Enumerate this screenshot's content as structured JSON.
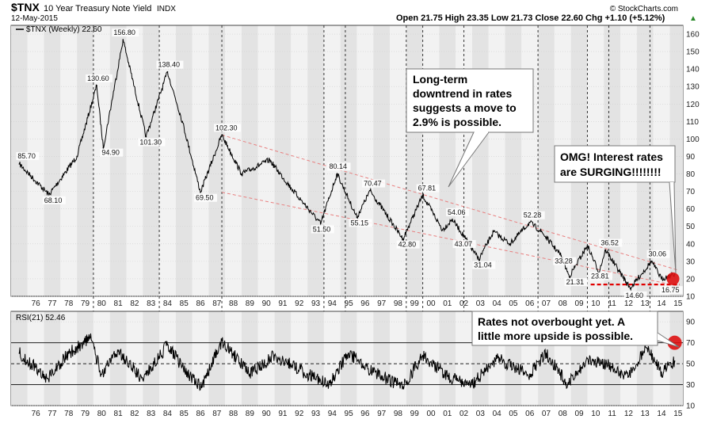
{
  "header": {
    "symbol": "$TNX",
    "name": "10 Year Treasury Note Yield",
    "exchange": "INDX",
    "date": "12-May-2015",
    "brand": "© StockCharts.com",
    "ohlc": "Open 21.75  High 23.35  Low 21.73  Close 22.60  Chg +1.10 (+5.12%)",
    "up_arrow": "▲"
  },
  "chart_data": [
    {
      "type": "line",
      "title": "$TNX 10 Year Treasury Note Yield",
      "legend": "$TNX (Weekly) 22.60",
      "x": [
        1975.5,
        1977.3,
        1979.0,
        1980.2,
        1980.6,
        1981.8,
        1983.2,
        1984.5,
        1985.4,
        1986.5,
        1987.8,
        1989.0,
        1990.7,
        1992.0,
        1993.8,
        1994.8,
        1996.0,
        1996.8,
        1998.8,
        2000.0,
        2001.2,
        2001.8,
        2002.6,
        2003.4,
        2004.3,
        2005.3,
        2006.5,
        2007.2,
        2008.4,
        2008.9,
        2010.0,
        2010.7,
        2011.1,
        2012.6,
        2013.9,
        2014.5,
        2015.3
      ],
      "values": [
        85.7,
        68.1,
        90.0,
        130.6,
        94.9,
        156.8,
        101.3,
        138.4,
        110.0,
        69.5,
        102.3,
        80.0,
        88.0,
        72.0,
        51.5,
        80.14,
        55.15,
        70.47,
        42.8,
        67.81,
        48.0,
        54.06,
        43.07,
        31.04,
        47.0,
        40.0,
        52.28,
        47.0,
        33.28,
        21.31,
        39.0,
        23.81,
        36.52,
        14.6,
        30.06,
        20.0,
        22.6
      ],
      "annotations": [
        "85.70",
        "68.10",
        "130.60",
        "94.90",
        "156.80",
        "101.30",
        "138.40",
        "69.50",
        "102.30",
        "51.50",
        "80.14",
        "55.15",
        "70.47",
        "42.80",
        "67.81",
        "54.06",
        "43.07",
        "31.04",
        "52.28",
        "33.28",
        "21.31",
        "23.81",
        "36.52",
        "14.60",
        "30.06",
        "16.75"
      ],
      "ylim": [
        10,
        165
      ],
      "yticks": [
        "10",
        "20",
        "30",
        "40",
        "50",
        "60",
        "70",
        "80",
        "90",
        "100",
        "110",
        "120",
        "130",
        "140",
        "150",
        "160"
      ],
      "xticks": [
        "76",
        "77",
        "78",
        "79",
        "80",
        "81",
        "82",
        "83",
        "84",
        "85",
        "86",
        "87",
        "88",
        "89",
        "90",
        "91",
        "92",
        "93",
        "94",
        "95",
        "96",
        "97",
        "98",
        "99",
        "00",
        "01",
        "02",
        "03",
        "04",
        "05",
        "06",
        "07",
        "08",
        "09",
        "10",
        "11",
        "12",
        "13",
        "14",
        "15"
      ],
      "channel_upper": {
        "x": [
          1987.8,
          2015.5
        ],
        "y": [
          102.3,
          25
        ]
      },
      "channel_lower": {
        "x": [
          1987.8,
          2015.5
        ],
        "y": [
          69.5,
          16
        ]
      },
      "support_level": 16.75,
      "grid": true
    },
    {
      "type": "line",
      "title": "RSI(21) 52.46",
      "legend": "RSI(21) 52.46",
      "x": [
        1975.5,
        1977.2,
        1978.5,
        1979.8,
        1980.5,
        1981.5,
        1983.0,
        1984.5,
        1985.8,
        1986.6,
        1987.8,
        1989.5,
        1991.0,
        1993.0,
        1994.3,
        1995.5,
        1997.0,
        1998.8,
        2000.0,
        2001.5,
        2003.0,
        2004.5,
        2006.5,
        2007.5,
        2008.8,
        2010.0,
        2011.3,
        2012.5,
        2013.6,
        2014.5,
        2015.3
      ],
      "values": [
        60,
        36,
        60,
        75,
        40,
        62,
        35,
        68,
        38,
        28,
        72,
        40,
        58,
        40,
        30,
        60,
        42,
        28,
        58,
        38,
        30,
        55,
        40,
        60,
        30,
        55,
        48,
        38,
        65,
        42,
        52.46
      ],
      "ylim": [
        10,
        100
      ],
      "yticks": [
        "10",
        "30",
        "50",
        "70",
        "90"
      ],
      "bands": [
        30,
        50,
        70
      ],
      "grid": true
    }
  ],
  "callouts": {
    "downtrend": [
      "Long-term",
      "downtrend in rates",
      "suggests a move to",
      "2.9% is possible."
    ],
    "surging": [
      "OMG! Interest rates",
      "are SURGING!!!!!!!!"
    ],
    "overbought": [
      "Rates not overbought yet. A",
      "little more upside is possible."
    ]
  },
  "colors": {
    "line": "#000000",
    "channel": "#e88080",
    "support": "#e00000",
    "marker": "#dd1111",
    "shade_dark": "#e3e3e3",
    "shade_light": "#f2f2f2"
  }
}
